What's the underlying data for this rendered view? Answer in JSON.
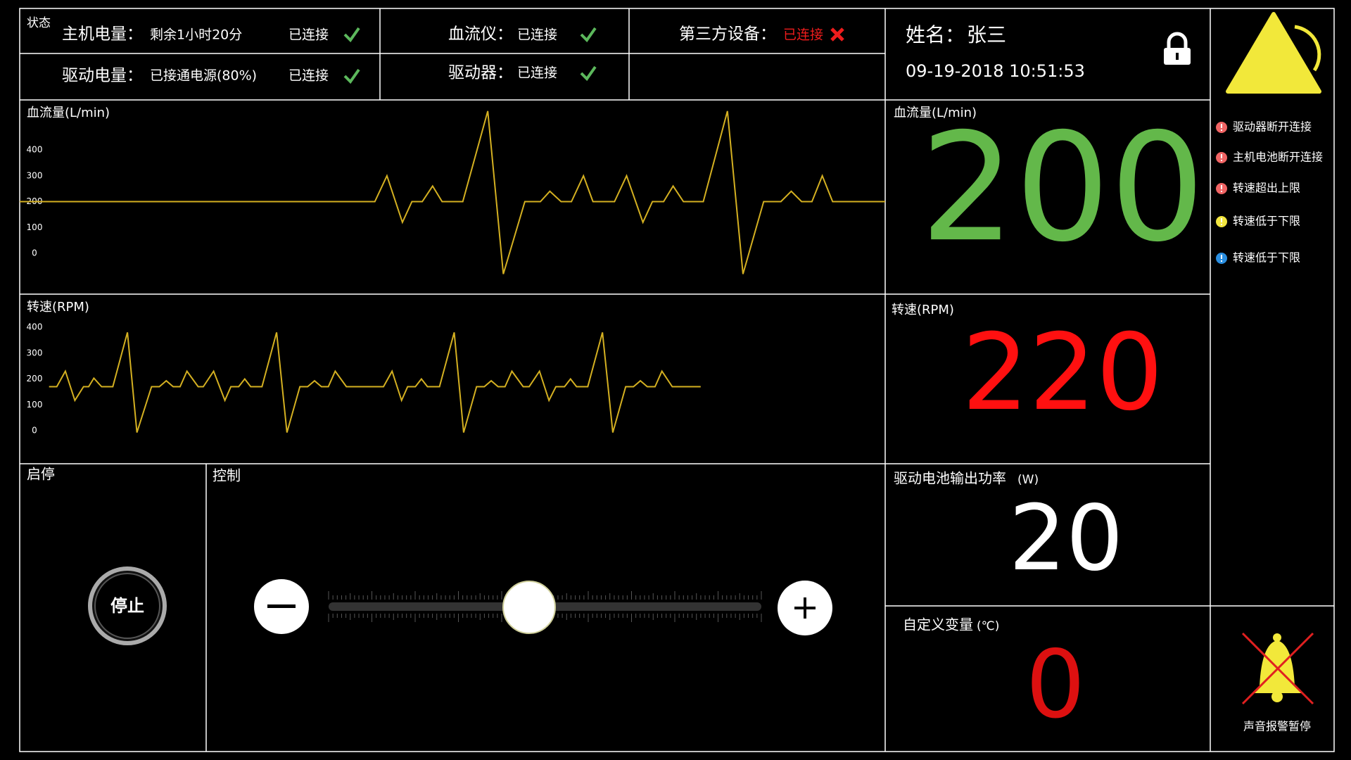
{
  "status": {
    "title": "状态",
    "host_battery": {
      "label": "主机电量：",
      "value": "剩余1小时20分",
      "state": "已连接"
    },
    "drive_battery": {
      "label": "驱动电量：",
      "value": "已接通电源(80%)",
      "state": "已连接"
    },
    "flowmeter": {
      "label": "血流仪：",
      "state": "已连接"
    },
    "driver": {
      "label": "驱动器：",
      "state": "已连接"
    },
    "third_party": {
      "label": "第三方设备：",
      "state": "已连接"
    }
  },
  "patient": {
    "name_label": "姓名：",
    "name": "张三",
    "datetime": "09-19-2018 10:51:53"
  },
  "chart_data": [
    {
      "type": "line",
      "title": "血流量(L/min)",
      "color": "#d4b021",
      "xlim": [
        0,
        1004
      ],
      "ylim": [
        0,
        400
      ],
      "yticks": [
        400,
        300,
        200,
        100,
        0
      ],
      "x": [
        0,
        412,
        426,
        444,
        455,
        467,
        479,
        490,
        514,
        543,
        561,
        586,
        604,
        615,
        628,
        640,
        654,
        665,
        690,
        704,
        723,
        734,
        747,
        758,
        770,
        793,
        821,
        839,
        863,
        883,
        895,
        907,
        919,
        931,
        943,
        1004
      ],
      "values": [
        200,
        200,
        300,
        120,
        200,
        200,
        260,
        200,
        200,
        550,
        -80,
        200,
        200,
        240,
        200,
        200,
        300,
        200,
        200,
        300,
        120,
        200,
        200,
        260,
        200,
        200,
        550,
        -80,
        200,
        200,
        240,
        200,
        200,
        300,
        200,
        200
      ]
    },
    {
      "type": "line",
      "title": "转速(RPM)",
      "color": "#d4b021",
      "xlim": [
        0,
        1004
      ],
      "ylim": [
        0,
        400
      ],
      "yticks": [
        400,
        300,
        200,
        100,
        0
      ],
      "x": [
        34,
        43,
        53,
        64,
        74,
        80,
        86,
        95,
        108,
        125,
        136,
        153,
        162,
        170,
        178,
        186,
        194,
        207,
        213,
        225,
        238,
        245,
        254,
        261,
        268,
        281,
        298,
        310,
        325,
        334,
        342,
        350,
        358,
        366,
        379,
        422,
        432,
        443,
        450,
        459,
        466,
        473,
        487,
        504,
        515,
        530,
        539,
        547,
        555,
        563,
        571,
        584,
        591,
        603,
        614,
        622,
        632,
        639,
        646,
        659,
        676,
        688,
        703,
        712,
        720,
        728,
        737,
        745,
        757,
        790
      ],
      "values": [
        170,
        170,
        230,
        117,
        170,
        170,
        203,
        170,
        170,
        380,
        -7,
        170,
        170,
        193,
        170,
        170,
        230,
        170,
        170,
        230,
        117,
        170,
        170,
        200,
        170,
        170,
        380,
        -7,
        170,
        170,
        193,
        170,
        170,
        230,
        170,
        170,
        230,
        117,
        170,
        170,
        200,
        170,
        170,
        380,
        -7,
        170,
        170,
        193,
        170,
        170,
        230,
        170,
        170,
        230,
        117,
        170,
        170,
        200,
        170,
        170,
        380,
        -7,
        170,
        170,
        193,
        170,
        170,
        230,
        170,
        170
      ]
    }
  ],
  "readouts": {
    "flow": {
      "label": "血流量(L/min)",
      "value": 200
    },
    "speed": {
      "label": "转速(RPM)",
      "value": 220
    },
    "power": {
      "label": "驱动电池输出功率",
      "unit": "(W)",
      "value": 20
    },
    "custom": {
      "label": "自定义变量",
      "unit": "(℃)",
      "value": 0
    }
  },
  "alarms": [
    {
      "text": "驱动器断开连接",
      "color": "#f06464"
    },
    {
      "text": "主机电池断开连接",
      "color": "#f06464"
    },
    {
      "text": "转速超出上限",
      "color": "#f06464"
    },
    {
      "text": "转速低于下限",
      "color": "#f2e640"
    },
    {
      "text": "转速低于下限",
      "color": "#2a8ee0"
    }
  ],
  "controls": {
    "start_stop": {
      "title": "启停",
      "button": "停止"
    },
    "control": {
      "title": "控制"
    }
  },
  "sound": {
    "label": "声音报警暂停"
  }
}
